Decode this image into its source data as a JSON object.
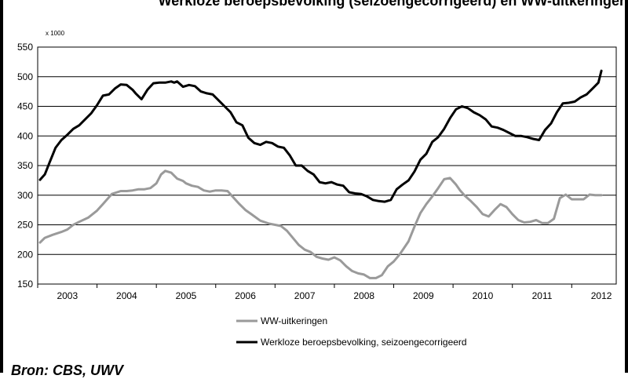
{
  "title": "Werkloze beroepsbevolking (seizoengecorrigeerd) en WW-uitkeringen",
  "source": "Bron: CBS, UWV",
  "chart_data": {
    "type": "line",
    "title": "Werkloze beroepsbevolking (seizoengecorrigeerd) en WW-uitkeringen",
    "ylabel": "x 1000",
    "ylim": [
      150,
      550
    ],
    "yticks": [
      150,
      200,
      250,
      300,
      350,
      400,
      450,
      500,
      550
    ],
    "xlim": [
      2002.5,
      2012.25
    ],
    "xticks": [
      {
        "label": "2003",
        "pos": 2003
      },
      {
        "label": "2004",
        "pos": 2004
      },
      {
        "label": "2005",
        "pos": 2005
      },
      {
        "label": "2006",
        "pos": 2006
      },
      {
        "label": "2007",
        "pos": 2007
      },
      {
        "label": "2008",
        "pos": 2008
      },
      {
        "label": "2009",
        "pos": 2009
      },
      {
        "label": "2010",
        "pos": 2010
      },
      {
        "label": "2011",
        "pos": 2011
      },
      {
        "label": "2012",
        "pos": 2012
      }
    ],
    "grid": true,
    "legend_position": "bottom-left",
    "series": [
      {
        "name": "WW-uitkeringen",
        "color": "#9a9a9a",
        "x": [
          2002.54,
          2002.62,
          2002.75,
          2002.9,
          2003.0,
          2003.1,
          2003.2,
          2003.35,
          2003.5,
          2003.6,
          2003.75,
          2003.9,
          2004.0,
          2004.1,
          2004.2,
          2004.3,
          2004.4,
          2004.5,
          2004.58,
          2004.65,
          2004.75,
          2004.85,
          2004.95,
          2005.0,
          2005.1,
          2005.2,
          2005.3,
          2005.4,
          2005.5,
          2005.6,
          2005.7,
          2005.8,
          2005.9,
          2006.0,
          2006.1,
          2006.25,
          2006.4,
          2006.5,
          2006.6,
          2006.7,
          2006.8,
          2006.9,
          2007.0,
          2007.1,
          2007.2,
          2007.3,
          2007.4,
          2007.5,
          2007.6,
          2007.7,
          2007.8,
          2007.9,
          2008.0,
          2008.1,
          2008.2,
          2008.3,
          2008.4,
          2008.5,
          2008.6,
          2008.75,
          2008.85,
          2008.95,
          2009.05,
          2009.15,
          2009.25,
          2009.35,
          2009.45,
          2009.55,
          2009.62,
          2009.7,
          2009.8,
          2009.9,
          2010.0,
          2010.1,
          2010.2,
          2010.3,
          2010.4,
          2010.5,
          2010.6,
          2010.7,
          2010.8,
          2010.9,
          2011.0,
          2011.1,
          2011.2,
          2011.3,
          2011.4,
          2011.5,
          2011.6,
          2011.7,
          2011.8,
          2011.9,
          2012.0
        ],
        "values": [
          220,
          228,
          233,
          238,
          242,
          250,
          255,
          262,
          274,
          285,
          302,
          307,
          307,
          308,
          310,
          310,
          312,
          320,
          335,
          341,
          338,
          328,
          324,
          320,
          316,
          314,
          308,
          306,
          308,
          308,
          307,
          296,
          285,
          275,
          268,
          257,
          252,
          250,
          248,
          240,
          228,
          216,
          208,
          204,
          196,
          193,
          191,
          195,
          190,
          180,
          172,
          168,
          166,
          160,
          160,
          165,
          180,
          188,
          200,
          222,
          247,
          270,
          285,
          298,
          312,
          327,
          329,
          318,
          308,
          299,
          290,
          280,
          268,
          264,
          275,
          285,
          280,
          268,
          258,
          254,
          255,
          258,
          253,
          253,
          260,
          295,
          301,
          293,
          293,
          293,
          301,
          300,
          300
        ]
      },
      {
        "name": "Werkloze beroepsbevolking, seizoengecorrigeerd",
        "color": "#000000",
        "x": [
          2002.54,
          2002.62,
          2002.7,
          2002.8,
          2002.9,
          2003.0,
          2003.1,
          2003.2,
          2003.3,
          2003.4,
          2003.5,
          2003.6,
          2003.7,
          2003.8,
          2003.9,
          2004.0,
          2004.1,
          2004.15,
          2004.25,
          2004.35,
          2004.45,
          2004.55,
          2004.65,
          2004.75,
          2004.8,
          2004.85,
          2004.95,
          2005.05,
          2005.15,
          2005.25,
          2005.35,
          2005.45,
          2005.55,
          2005.65,
          2005.75,
          2005.85,
          2005.95,
          2006.05,
          2006.15,
          2006.25,
          2006.35,
          2006.45,
          2006.55,
          2006.65,
          2006.75,
          2006.85,
          2006.95,
          2007.05,
          2007.15,
          2007.25,
          2007.35,
          2007.45,
          2007.55,
          2007.65,
          2007.75,
          2007.85,
          2007.95,
          2008.05,
          2008.15,
          2008.25,
          2008.35,
          2008.45,
          2008.55,
          2008.65,
          2008.75,
          2008.85,
          2008.95,
          2009.05,
          2009.15,
          2009.25,
          2009.35,
          2009.45,
          2009.55,
          2009.65,
          2009.75,
          2009.85,
          2009.95,
          2010.05,
          2010.15,
          2010.25,
          2010.35,
          2010.45,
          2010.55,
          2010.65,
          2010.75,
          2010.85,
          2010.95,
          2011.05,
          2011.15,
          2011.25,
          2011.35,
          2011.45,
          2011.55,
          2011.65,
          2011.75,
          2011.85,
          2011.95,
          2012.0
        ],
        "values": [
          326,
          335,
          355,
          380,
          393,
          402,
          412,
          418,
          428,
          438,
          452,
          468,
          470,
          480,
          487,
          486,
          478,
          472,
          462,
          478,
          489,
          490,
          490,
          492,
          490,
          492,
          483,
          486,
          484,
          475,
          472,
          470,
          460,
          450,
          440,
          423,
          418,
          397,
          388,
          385,
          390,
          388,
          382,
          380,
          367,
          350,
          350,
          341,
          335,
          322,
          320,
          322,
          318,
          316,
          305,
          303,
          302,
          298,
          292,
          290,
          289,
          292,
          310,
          318,
          325,
          340,
          360,
          370,
          390,
          398,
          412,
          430,
          445,
          450,
          447,
          440,
          435,
          428,
          416,
          414,
          410,
          405,
          400,
          400,
          398,
          395,
          393,
          410,
          421,
          440,
          455,
          456,
          458,
          465,
          470,
          480,
          490,
          510
        ]
      }
    ]
  }
}
